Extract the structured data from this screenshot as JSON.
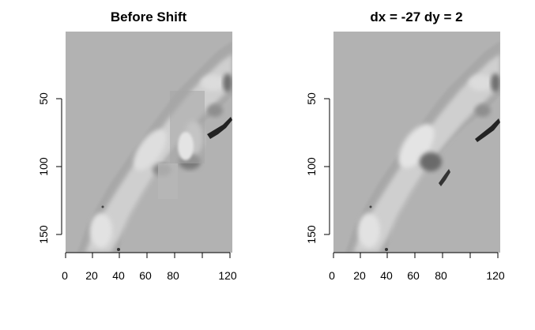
{
  "chart_data": [
    {
      "type": "heatmap",
      "title": "Before Shift",
      "xlim": [
        0,
        122
      ],
      "ylim": [
        163,
        0
      ],
      "x_ticks": [
        0,
        20,
        40,
        60,
        80,
        100,
        120
      ],
      "x_tick_labels": [
        "0",
        "20",
        "40",
        "60",
        "80",
        "",
        "120"
      ],
      "y_ticks": [
        50,
        100,
        150
      ],
      "y_tick_labels": [
        "50",
        "100",
        "150"
      ],
      "background": "#b2b2b2",
      "colormap": "grayscale"
    },
    {
      "type": "heatmap",
      "title": "dx =  -27  dy =  2",
      "xlim": [
        0,
        122
      ],
      "ylim": [
        163,
        0
      ],
      "x_ticks": [
        0,
        20,
        40,
        60,
        80,
        100,
        120
      ],
      "x_tick_labels": [
        "0",
        "20",
        "40",
        "60",
        "80",
        "",
        "120"
      ],
      "y_ticks": [
        50,
        100,
        150
      ],
      "y_tick_labels": [
        "50",
        "100",
        "150"
      ],
      "background": "#b2b2b2",
      "colormap": "grayscale",
      "shift": {
        "dx": -27,
        "dy": 2
      }
    }
  ]
}
